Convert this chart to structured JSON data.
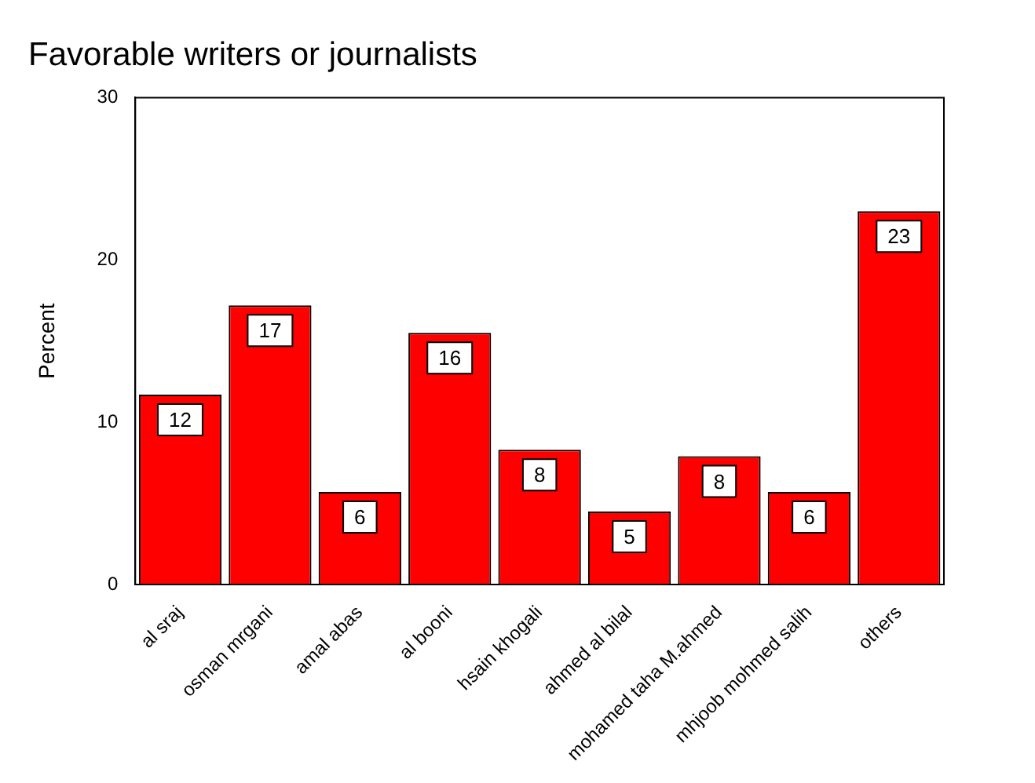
{
  "chart_data": {
    "type": "bar",
    "title": "Favorable writers or journalists",
    "ylabel": "Percent",
    "categories": [
      "al sraj",
      "osman mrgani",
      "amal abas",
      "al booni",
      "hsain khogali",
      "ahmed al bilal",
      "mohamed taha M.ahmed",
      "mhjoob mohmed salih",
      "others"
    ],
    "values": [
      11.7,
      17.2,
      5.7,
      15.5,
      8.3,
      4.5,
      7.9,
      5.7,
      23.0
    ],
    "value_labels": [
      "12",
      "17",
      "6",
      "16",
      "8",
      "5",
      "8",
      "6",
      "23"
    ],
    "color": "#ff0000",
    "ylim": [
      0,
      30
    ],
    "yticks": [
      0,
      10,
      20,
      30
    ],
    "grid": false,
    "legend": false
  }
}
